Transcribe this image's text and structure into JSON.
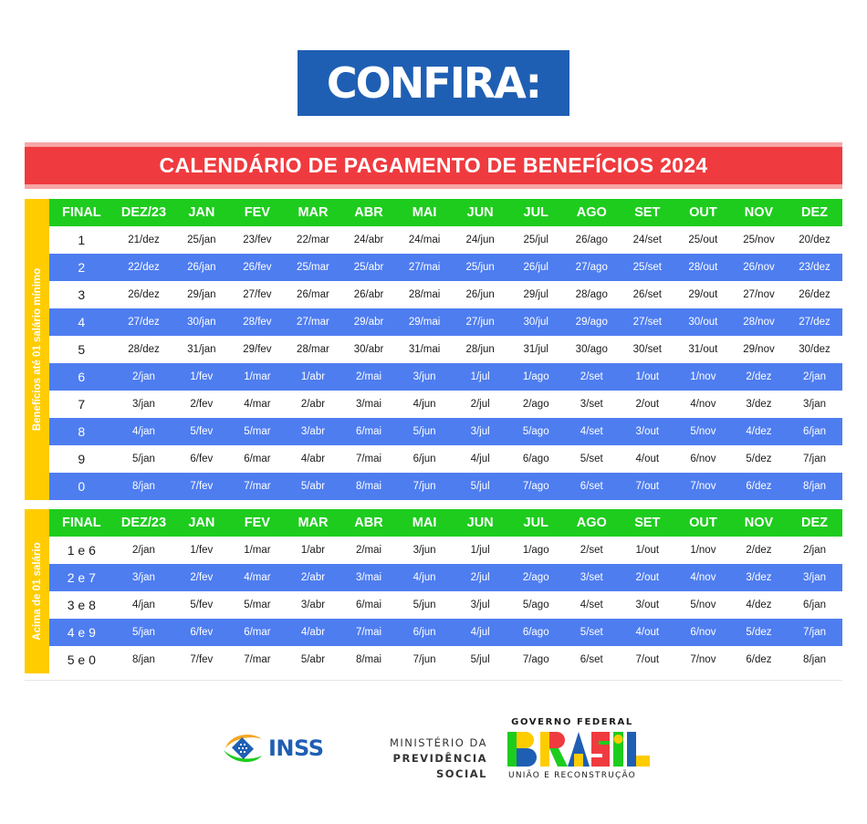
{
  "header": {
    "title": "CONFIRA:"
  },
  "banner": {
    "title": "CALENDÁRIO DE PAGAMENTO DE BENEFÍCIOS 2024"
  },
  "section1": {
    "side_label": "Benefícios até 01 salário mínimo",
    "headers": [
      "FINAL",
      "DEZ/23",
      "JAN",
      "FEV",
      "MAR",
      "ABR",
      "MAI",
      "JUN",
      "JUL",
      "AGO",
      "SET",
      "OUT",
      "NOV",
      "DEZ"
    ],
    "rows": [
      [
        "1",
        "21/dez",
        "25/jan",
        "23/fev",
        "22/mar",
        "24/abr",
        "24/mai",
        "24/jun",
        "25/jul",
        "26/ago",
        "24/set",
        "25/out",
        "25/nov",
        "20/dez"
      ],
      [
        "2",
        "22/dez",
        "26/jan",
        "26/fev",
        "25/mar",
        "25/abr",
        "27/mai",
        "25/jun",
        "26/jul",
        "27/ago",
        "25/set",
        "28/out",
        "26/nov",
        "23/dez"
      ],
      [
        "3",
        "26/dez",
        "29/jan",
        "27/fev",
        "26/mar",
        "26/abr",
        "28/mai",
        "26/jun",
        "29/jul",
        "28/ago",
        "26/set",
        "29/out",
        "27/nov",
        "26/dez"
      ],
      [
        "4",
        "27/dez",
        "30/jan",
        "28/fev",
        "27/mar",
        "29/abr",
        "29/mai",
        "27/jun",
        "30/jul",
        "29/ago",
        "27/set",
        "30/out",
        "28/nov",
        "27/dez"
      ],
      [
        "5",
        "28/dez",
        "31/jan",
        "29/fev",
        "28/mar",
        "30/abr",
        "31/mai",
        "28/jun",
        "31/jul",
        "30/ago",
        "30/set",
        "31/out",
        "29/nov",
        "30/dez"
      ],
      [
        "6",
        "2/jan",
        "1/fev",
        "1/mar",
        "1/abr",
        "2/mai",
        "3/jun",
        "1/jul",
        "1/ago",
        "2/set",
        "1/out",
        "1/nov",
        "2/dez",
        "2/jan"
      ],
      [
        "7",
        "3/jan",
        "2/fev",
        "4/mar",
        "2/abr",
        "3/mai",
        "4/jun",
        "2/jul",
        "2/ago",
        "3/set",
        "2/out",
        "4/nov",
        "3/dez",
        "3/jan"
      ],
      [
        "8",
        "4/jan",
        "5/fev",
        "5/mar",
        "3/abr",
        "6/mai",
        "5/jun",
        "3/jul",
        "5/ago",
        "4/set",
        "3/out",
        "5/nov",
        "4/dez",
        "6/jan"
      ],
      [
        "9",
        "5/jan",
        "6/fev",
        "6/mar",
        "4/abr",
        "7/mai",
        "6/jun",
        "4/jul",
        "6/ago",
        "5/set",
        "4/out",
        "6/nov",
        "5/dez",
        "7/jan"
      ],
      [
        "0",
        "8/jan",
        "7/fev",
        "7/mar",
        "5/abr",
        "8/mai",
        "7/jun",
        "5/jul",
        "7/ago",
        "6/set",
        "7/out",
        "7/nov",
        "6/dez",
        "8/jan"
      ]
    ]
  },
  "section2": {
    "side_label": "Acima de 01 salário",
    "headers": [
      "FINAL",
      "DEZ/23",
      "JAN",
      "FEV",
      "MAR",
      "ABR",
      "MAI",
      "JUN",
      "JUL",
      "AGO",
      "SET",
      "OUT",
      "NOV",
      "DEZ"
    ],
    "rows": [
      [
        "1 e 6",
        "2/jan",
        "1/fev",
        "1/mar",
        "1/abr",
        "2/mai",
        "3/jun",
        "1/jul",
        "1/ago",
        "2/set",
        "1/out",
        "1/nov",
        "2/dez",
        "2/jan"
      ],
      [
        "2 e 7",
        "3/jan",
        "2/fev",
        "4/mar",
        "2/abr",
        "3/mai",
        "4/jun",
        "2/jul",
        "2/ago",
        "3/set",
        "2/out",
        "4/nov",
        "3/dez",
        "3/jan"
      ],
      [
        "3 e 8",
        "4/jan",
        "5/fev",
        "5/mar",
        "3/abr",
        "6/mai",
        "5/jun",
        "3/jul",
        "5/ago",
        "4/set",
        "3/out",
        "5/nov",
        "4/dez",
        "6/jan"
      ],
      [
        "4 e 9",
        "5/jan",
        "6/fev",
        "6/mar",
        "4/abr",
        "7/mai",
        "6/jun",
        "4/jul",
        "6/ago",
        "5/set",
        "4/out",
        "6/nov",
        "5/dez",
        "7/jan"
      ],
      [
        "5 e 0",
        "8/jan",
        "7/fev",
        "7/mar",
        "5/abr",
        "8/mai",
        "7/jun",
        "5/jul",
        "7/ago",
        "6/set",
        "7/out",
        "7/nov",
        "6/dez",
        "8/jan"
      ]
    ]
  },
  "footer": {
    "inss": {
      "text": "INSS",
      "icon": "inss-logo-icon"
    },
    "ministry": {
      "line1": "MINISTÉRIO DA",
      "line2": "PREVIDÊNCIA SOCIAL"
    },
    "gov": {
      "top": "GOVERNO FEDERAL",
      "word": "BRASIL",
      "bottom": "UNIÃO E RECONSTRUÇÃO"
    }
  },
  "colors": {
    "confira_bg": "#1f5fb3",
    "banner_red": "#ef3b3f",
    "header_green": "#1ecc1e",
    "row_blue": "#4e7df0",
    "side_yellow": "#ffcc00"
  }
}
